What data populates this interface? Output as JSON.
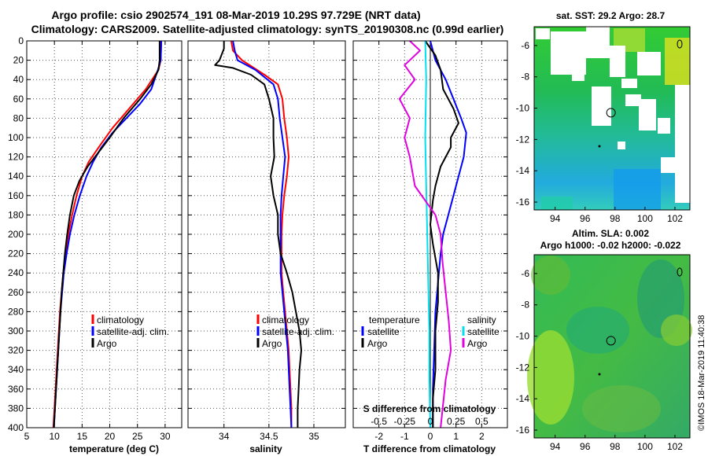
{
  "title": {
    "line1": "Argo profile: csio 2902574_191 08-Mar-2019 10.29S 97.729E (NRT data)",
    "line2": "Climatology: CARS2009. Satellite-adjusted climatology: synTS_20190308.nc (0.99d earlier)"
  },
  "colors": {
    "climatology": "#ff0000",
    "satellite": "#0000ff",
    "argo": "#000000",
    "sat_salinity": "#00e0f0",
    "argo_salinity": "#e000e0"
  },
  "chart_data": [
    {
      "type": "line",
      "id": "temperature",
      "xlabel": "temperature (deg C)",
      "xlim": [
        5,
        33
      ],
      "ylim": [
        0,
        400
      ],
      "xticks": [
        5,
        10,
        15,
        20,
        25,
        30
      ],
      "yticks": [
        0,
        20,
        40,
        60,
        80,
        100,
        120,
        140,
        160,
        180,
        200,
        220,
        240,
        260,
        280,
        300,
        320,
        340,
        360,
        380,
        400
      ],
      "legend": [
        "climatology",
        "satellite-adj. clim.",
        "Argo"
      ],
      "series": [
        {
          "name": "climatology",
          "color": "#ff0000",
          "points": [
            [
              29.3,
              0
            ],
            [
              29.2,
              20
            ],
            [
              28.8,
              30
            ],
            [
              26.5,
              50
            ],
            [
              23.5,
              70
            ],
            [
              20.5,
              90
            ],
            [
              18,
              110
            ],
            [
              16.2,
              125
            ],
            [
              15,
              140
            ],
            [
              14,
              160
            ],
            [
              13.2,
              180
            ],
            [
              12.5,
              200
            ],
            [
              12,
              220
            ],
            [
              11.6,
              240
            ],
            [
              11.3,
              260
            ],
            [
              11,
              280
            ],
            [
              10.8,
              300
            ],
            [
              10.6,
              320
            ],
            [
              10.4,
              340
            ],
            [
              10.2,
              360
            ],
            [
              10,
              380
            ],
            [
              9.8,
              400
            ]
          ]
        },
        {
          "name": "satellite-adj. clim.",
          "color": "#0000ff",
          "points": [
            [
              29.3,
              0
            ],
            [
              29.2,
              20
            ],
            [
              28.7,
              30
            ],
            [
              27.5,
              50
            ],
            [
              25.5,
              65
            ],
            [
              23,
              80
            ],
            [
              20.5,
              95
            ],
            [
              18.5,
              110
            ],
            [
              17,
              125
            ],
            [
              15.8,
              140
            ],
            [
              14.6,
              160
            ],
            [
              13.6,
              180
            ],
            [
              12.8,
              200
            ],
            [
              12.2,
              220
            ],
            [
              11.7,
              240
            ],
            [
              11.4,
              260
            ],
            [
              11.1,
              280
            ],
            [
              10.9,
              300
            ],
            [
              10.7,
              320
            ],
            [
              10.5,
              340
            ],
            [
              10.3,
              360
            ],
            [
              10.1,
              380
            ],
            [
              9.9,
              400
            ]
          ]
        },
        {
          "name": "Argo",
          "color": "#000000",
          "points": [
            [
              29,
              0
            ],
            [
              29,
              20
            ],
            [
              28.8,
              30
            ],
            [
              27.5,
              45
            ],
            [
              25.5,
              60
            ],
            [
              22.5,
              80
            ],
            [
              20,
              100
            ],
            [
              18,
              115
            ],
            [
              16,
              130
            ],
            [
              14.5,
              145
            ],
            [
              13.5,
              160
            ],
            [
              12.8,
              180
            ],
            [
              12.3,
              200
            ],
            [
              11.9,
              220
            ],
            [
              11.6,
              240
            ],
            [
              11.3,
              260
            ],
            [
              11.1,
              280
            ],
            [
              10.9,
              300
            ],
            [
              10.7,
              320
            ],
            [
              10.5,
              340
            ],
            [
              10.3,
              360
            ],
            [
              10.1,
              380
            ],
            [
              9.9,
              400
            ]
          ]
        }
      ]
    },
    {
      "type": "line",
      "id": "salinity",
      "xlabel": "salinity",
      "xlim": [
        33.6,
        35.35
      ],
      "ylim": [
        0,
        400
      ],
      "xticks": [
        34,
        34.5,
        35
      ],
      "legend": [
        "climatology",
        "satellite-adj. clim.",
        "Argo"
      ],
      "series": [
        {
          "name": "climatology",
          "color": "#ff0000",
          "points": [
            [
              34.08,
              0
            ],
            [
              34.1,
              10
            ],
            [
              34.2,
              20
            ],
            [
              34.45,
              35
            ],
            [
              34.6,
              45
            ],
            [
              34.65,
              60
            ],
            [
              34.67,
              80
            ],
            [
              34.7,
              100
            ],
            [
              34.72,
              120
            ],
            [
              34.7,
              140
            ],
            [
              34.67,
              160
            ],
            [
              34.65,
              180
            ],
            [
              34.64,
              200
            ],
            [
              34.64,
              220
            ],
            [
              34.64,
              240
            ],
            [
              34.66,
              260
            ],
            [
              34.68,
              280
            ],
            [
              34.7,
              300
            ],
            [
              34.72,
              320
            ],
            [
              34.73,
              340
            ],
            [
              34.74,
              360
            ],
            [
              34.75,
              380
            ],
            [
              34.75,
              400
            ]
          ]
        },
        {
          "name": "satellite-adj. clim.",
          "color": "#0000ff",
          "points": [
            [
              34.1,
              0
            ],
            [
              34.12,
              10
            ],
            [
              34.15,
              20
            ],
            [
              34.35,
              30
            ],
            [
              34.55,
              45
            ],
            [
              34.6,
              60
            ],
            [
              34.62,
              80
            ],
            [
              34.65,
              100
            ],
            [
              34.68,
              120
            ],
            [
              34.66,
              140
            ],
            [
              34.64,
              160
            ],
            [
              34.63,
              180
            ],
            [
              34.63,
              200
            ],
            [
              34.63,
              220
            ],
            [
              34.63,
              240
            ],
            [
              34.65,
              260
            ],
            [
              34.67,
              280
            ],
            [
              34.69,
              300
            ],
            [
              34.71,
              320
            ],
            [
              34.72,
              340
            ],
            [
              34.73,
              360
            ],
            [
              34.74,
              380
            ],
            [
              34.75,
              400
            ]
          ]
        },
        {
          "name": "Argo",
          "color": "#000000",
          "points": [
            [
              34.0,
              0
            ],
            [
              34.0,
              8
            ],
            [
              33.95,
              20
            ],
            [
              33.9,
              25
            ],
            [
              34.1,
              28
            ],
            [
              34.3,
              35
            ],
            [
              34.45,
              45
            ],
            [
              34.5,
              60
            ],
            [
              34.55,
              80
            ],
            [
              34.55,
              100
            ],
            [
              34.56,
              120
            ],
            [
              34.52,
              140
            ],
            [
              34.55,
              160
            ],
            [
              34.6,
              180
            ],
            [
              34.6,
              200
            ],
            [
              34.63,
              220
            ],
            [
              34.7,
              240
            ],
            [
              34.76,
              260
            ],
            [
              34.8,
              280
            ],
            [
              34.84,
              300
            ],
            [
              34.86,
              320
            ],
            [
              34.84,
              340
            ],
            [
              34.83,
              360
            ],
            [
              34.82,
              380
            ],
            [
              34.82,
              400
            ]
          ]
        }
      ]
    },
    {
      "type": "line",
      "id": "difference",
      "xlabel": "T difference from climatology",
      "xlim": [
        -3,
        3
      ],
      "ylim": [
        0,
        400
      ],
      "xticks": [
        -2,
        -1,
        0,
        1,
        2
      ],
      "top_axis": {
        "label": "S difference from climatology",
        "ticks": [
          "-0.5",
          "-0.25",
          "0",
          "0.25",
          "0.5"
        ]
      },
      "legend_temperature": {
        "title": "temperature",
        "items": [
          "satellite",
          "Argo"
        ]
      },
      "legend_salinity": {
        "title": "salinity",
        "items": [
          "satellite",
          "Argo"
        ]
      },
      "series": [
        {
          "name": "T satellite",
          "color": "#0000ff",
          "points": [
            [
              0,
              0
            ],
            [
              0.2,
              20
            ],
            [
              0.6,
              40
            ],
            [
              0.9,
              60
            ],
            [
              1.2,
              80
            ],
            [
              1.4,
              95
            ],
            [
              1.3,
              120
            ],
            [
              1.0,
              150
            ],
            [
              0.7,
              180
            ],
            [
              0.5,
              200
            ],
            [
              0.4,
              220
            ],
            [
              0.3,
              250
            ],
            [
              0.2,
              280
            ],
            [
              0.15,
              320
            ],
            [
              0.1,
              360
            ],
            [
              0.1,
              400
            ]
          ]
        },
        {
          "name": "T Argo",
          "color": "#000000",
          "points": [
            [
              -0.2,
              0
            ],
            [
              0.2,
              15
            ],
            [
              0.4,
              30
            ],
            [
              0.5,
              50
            ],
            [
              0.9,
              70
            ],
            [
              1.1,
              85
            ],
            [
              0.8,
              100
            ],
            [
              0.8,
              110
            ],
            [
              0.4,
              130
            ],
            [
              0.2,
              150
            ],
            [
              0.1,
              165
            ],
            [
              0,
              190
            ],
            [
              0.1,
              210
            ],
            [
              0.3,
              240
            ],
            [
              0.3,
              270
            ],
            [
              0.2,
              300
            ],
            [
              0.2,
              340
            ],
            [
              0.1,
              370
            ],
            [
              0.1,
              400
            ]
          ]
        },
        {
          "name": "S satellite",
          "color": "#00e0f0",
          "points": [
            [
              -0.05,
              0
            ],
            [
              -0.04,
              40
            ],
            [
              -0.05,
              100
            ],
            [
              -0.04,
              150
            ],
            [
              -0.03,
              200
            ],
            [
              -0.02,
              250
            ],
            [
              -0.01,
              300
            ],
            [
              -0.01,
              350
            ],
            [
              0,
              400
            ]
          ]
        },
        {
          "name": "S Argo",
          "color": "#e000e0",
          "points": [
            [
              -0.2,
              0
            ],
            [
              -0.1,
              10
            ],
            [
              -0.25,
              25
            ],
            [
              -0.15,
              40
            ],
            [
              -0.3,
              60
            ],
            [
              -0.2,
              80
            ],
            [
              -0.25,
              100
            ],
            [
              -0.2,
              120
            ],
            [
              -0.15,
              150
            ],
            [
              0.05,
              180
            ],
            [
              0.1,
              200
            ],
            [
              0.12,
              230
            ],
            [
              0.15,
              260
            ],
            [
              0.18,
              290
            ],
            [
              0.2,
              320
            ],
            [
              0.15,
              350
            ],
            [
              0.12,
              380
            ],
            [
              0.1,
              400
            ]
          ]
        }
      ]
    },
    {
      "type": "heatmap",
      "id": "sst_map",
      "title": "sat. SST: 29.2 Argo: 28.7",
      "xticks": [
        94,
        96,
        98,
        100,
        102
      ],
      "yticks": [
        -6,
        -8,
        -10,
        -12,
        -14,
        -16
      ],
      "xlim": [
        92.6,
        103
      ],
      "ylim": [
        -16.5,
        -4.8
      ],
      "argo_position": [
        97.73,
        -10.29
      ]
    },
    {
      "type": "heatmap",
      "id": "sla_map",
      "title_line1": "Altim. SLA: 0.002",
      "title_line2": "Argo h1000: -0.02 h2000: -0.022",
      "xticks": [
        94,
        96,
        98,
        100,
        102
      ],
      "yticks": [
        -6,
        -8,
        -10,
        -12,
        -14,
        -16
      ],
      "xlim": [
        92.6,
        103
      ],
      "ylim": [
        -16.5,
        -4.8
      ],
      "argo_position": [
        97.73,
        -10.29
      ]
    }
  ],
  "credit": "©IMOS 18-Mar-2019 11:40:38"
}
